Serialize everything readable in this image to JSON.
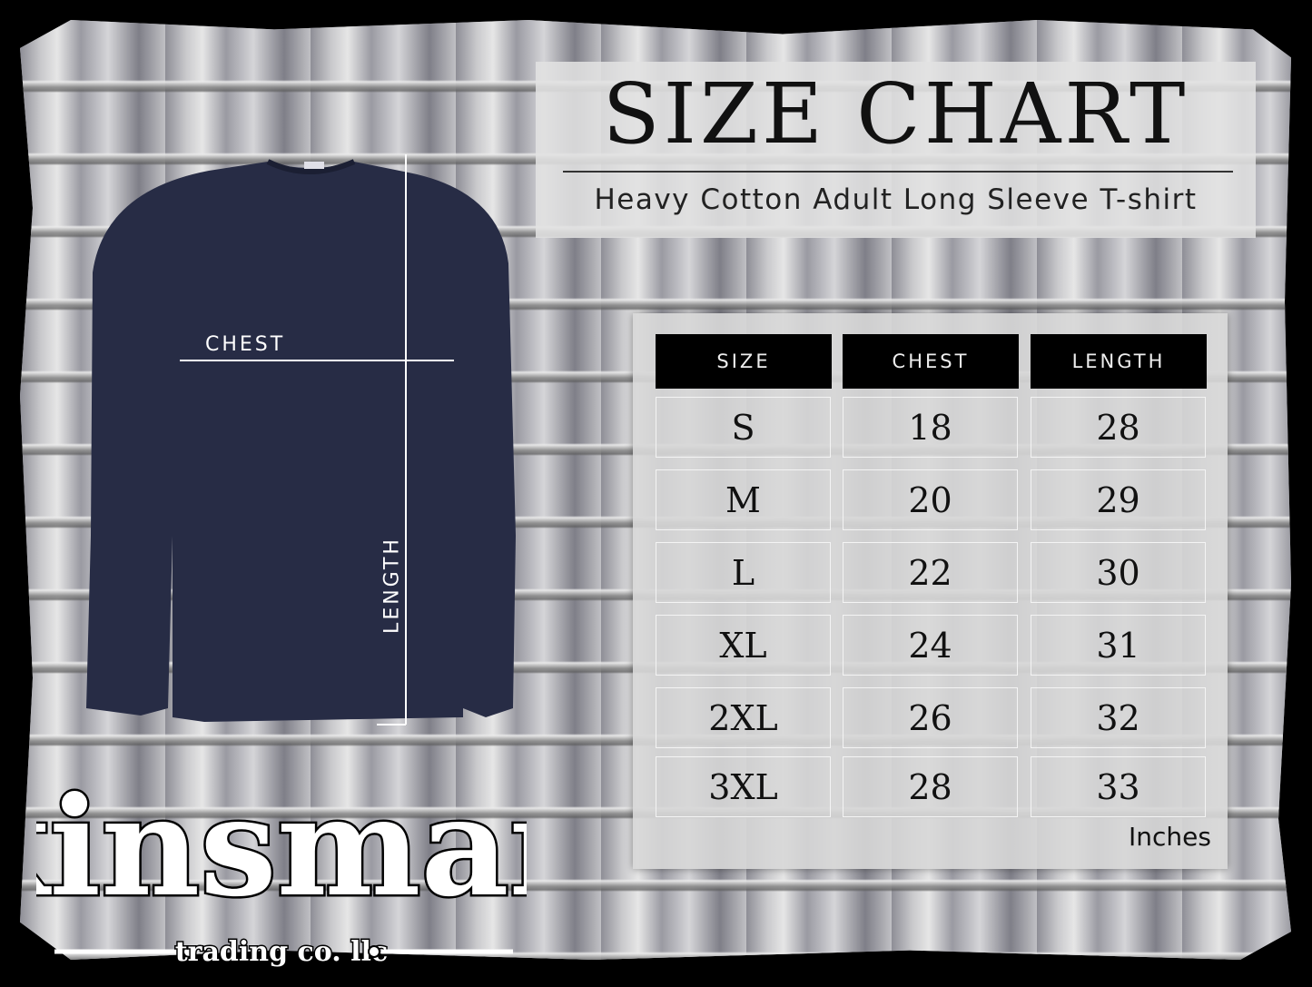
{
  "title": "SIZE CHART",
  "subtitle": "Heavy Cotton Adult Long Sleeve T-shirt",
  "diagram": {
    "chest_label": "CHEST",
    "length_label": "LENGTH",
    "shirt_color": "#272c45"
  },
  "table": {
    "headers": [
      "SIZE",
      "CHEST",
      "LENGTH"
    ],
    "rows": [
      [
        "S",
        "18",
        "28"
      ],
      [
        "M",
        "20",
        "29"
      ],
      [
        "L",
        "22",
        "30"
      ],
      [
        "XL",
        "24",
        "31"
      ],
      [
        "2XL",
        "26",
        "32"
      ],
      [
        "3XL",
        "28",
        "33"
      ]
    ],
    "units": "Inches"
  },
  "logo": {
    "name": "kinsman",
    "tagline": "trading co. llc"
  }
}
